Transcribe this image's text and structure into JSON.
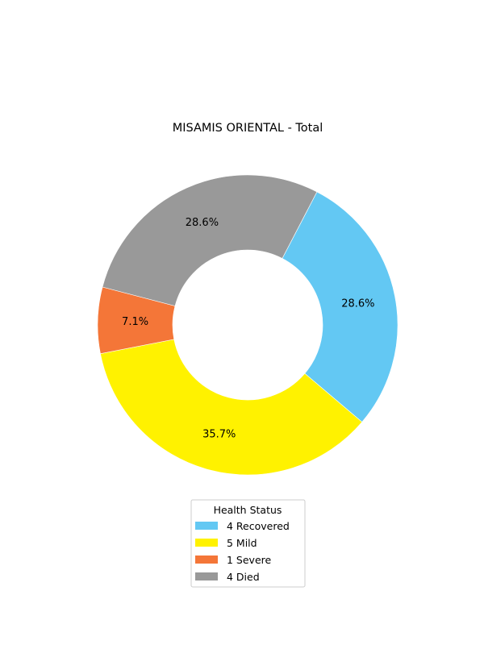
{
  "chart_data": {
    "type": "pie",
    "title": "MISAMIS ORIENTAL - Total",
    "slices": [
      {
        "label": "4  Recovered",
        "value": 4,
        "pct_label": "28.6%",
        "color": "#63c8f3"
      },
      {
        "label": "5  Mild",
        "value": 5,
        "pct_label": "35.7%",
        "color": "#fff200"
      },
      {
        "label": "1  Severe",
        "value": 1,
        "pct_label": "7.1%",
        "color": "#f47638"
      },
      {
        "label": "4  Died",
        "value": 4,
        "pct_label": "28.6%",
        "color": "#999999"
      }
    ],
    "legend": {
      "title": "Health Status",
      "placement": "bottom-center"
    },
    "donut": true
  }
}
